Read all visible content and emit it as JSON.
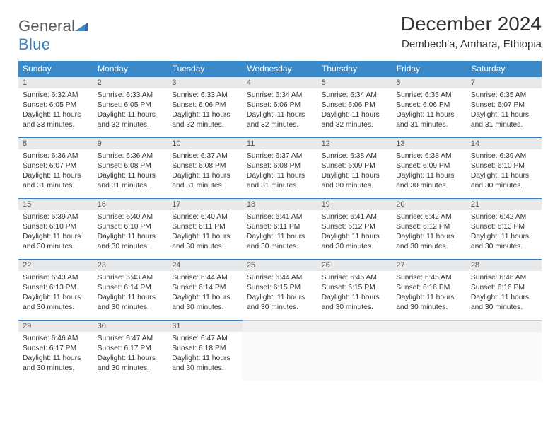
{
  "logo": {
    "word1": "General",
    "word2": "Blue"
  },
  "title": "December 2024",
  "location": "Dembech'a, Amhara, Ethiopia",
  "colors": {
    "header_bg": "#3a8ac9",
    "daynum_bg": "#e8e9ea",
    "daynum_border": "#3a7fc4",
    "logo_blue": "#3a7fc4",
    "text": "#333333"
  },
  "weekdays": [
    "Sunday",
    "Monday",
    "Tuesday",
    "Wednesday",
    "Thursday",
    "Friday",
    "Saturday"
  ],
  "weeks": [
    [
      {
        "n": "1",
        "sr": "6:32 AM",
        "ss": "6:05 PM",
        "dl": "11 hours and 33 minutes."
      },
      {
        "n": "2",
        "sr": "6:33 AM",
        "ss": "6:05 PM",
        "dl": "11 hours and 32 minutes."
      },
      {
        "n": "3",
        "sr": "6:33 AM",
        "ss": "6:06 PM",
        "dl": "11 hours and 32 minutes."
      },
      {
        "n": "4",
        "sr": "6:34 AM",
        "ss": "6:06 PM",
        "dl": "11 hours and 32 minutes."
      },
      {
        "n": "5",
        "sr": "6:34 AM",
        "ss": "6:06 PM",
        "dl": "11 hours and 32 minutes."
      },
      {
        "n": "6",
        "sr": "6:35 AM",
        "ss": "6:06 PM",
        "dl": "11 hours and 31 minutes."
      },
      {
        "n": "7",
        "sr": "6:35 AM",
        "ss": "6:07 PM",
        "dl": "11 hours and 31 minutes."
      }
    ],
    [
      {
        "n": "8",
        "sr": "6:36 AM",
        "ss": "6:07 PM",
        "dl": "11 hours and 31 minutes."
      },
      {
        "n": "9",
        "sr": "6:36 AM",
        "ss": "6:08 PM",
        "dl": "11 hours and 31 minutes."
      },
      {
        "n": "10",
        "sr": "6:37 AM",
        "ss": "6:08 PM",
        "dl": "11 hours and 31 minutes."
      },
      {
        "n": "11",
        "sr": "6:37 AM",
        "ss": "6:08 PM",
        "dl": "11 hours and 31 minutes."
      },
      {
        "n": "12",
        "sr": "6:38 AM",
        "ss": "6:09 PM",
        "dl": "11 hours and 30 minutes."
      },
      {
        "n": "13",
        "sr": "6:38 AM",
        "ss": "6:09 PM",
        "dl": "11 hours and 30 minutes."
      },
      {
        "n": "14",
        "sr": "6:39 AM",
        "ss": "6:10 PM",
        "dl": "11 hours and 30 minutes."
      }
    ],
    [
      {
        "n": "15",
        "sr": "6:39 AM",
        "ss": "6:10 PM",
        "dl": "11 hours and 30 minutes."
      },
      {
        "n": "16",
        "sr": "6:40 AM",
        "ss": "6:10 PM",
        "dl": "11 hours and 30 minutes."
      },
      {
        "n": "17",
        "sr": "6:40 AM",
        "ss": "6:11 PM",
        "dl": "11 hours and 30 minutes."
      },
      {
        "n": "18",
        "sr": "6:41 AM",
        "ss": "6:11 PM",
        "dl": "11 hours and 30 minutes."
      },
      {
        "n": "19",
        "sr": "6:41 AM",
        "ss": "6:12 PM",
        "dl": "11 hours and 30 minutes."
      },
      {
        "n": "20",
        "sr": "6:42 AM",
        "ss": "6:12 PM",
        "dl": "11 hours and 30 minutes."
      },
      {
        "n": "21",
        "sr": "6:42 AM",
        "ss": "6:13 PM",
        "dl": "11 hours and 30 minutes."
      }
    ],
    [
      {
        "n": "22",
        "sr": "6:43 AM",
        "ss": "6:13 PM",
        "dl": "11 hours and 30 minutes."
      },
      {
        "n": "23",
        "sr": "6:43 AM",
        "ss": "6:14 PM",
        "dl": "11 hours and 30 minutes."
      },
      {
        "n": "24",
        "sr": "6:44 AM",
        "ss": "6:14 PM",
        "dl": "11 hours and 30 minutes."
      },
      {
        "n": "25",
        "sr": "6:44 AM",
        "ss": "6:15 PM",
        "dl": "11 hours and 30 minutes."
      },
      {
        "n": "26",
        "sr": "6:45 AM",
        "ss": "6:15 PM",
        "dl": "11 hours and 30 minutes."
      },
      {
        "n": "27",
        "sr": "6:45 AM",
        "ss": "6:16 PM",
        "dl": "11 hours and 30 minutes."
      },
      {
        "n": "28",
        "sr": "6:46 AM",
        "ss": "6:16 PM",
        "dl": "11 hours and 30 minutes."
      }
    ],
    [
      {
        "n": "29",
        "sr": "6:46 AM",
        "ss": "6:17 PM",
        "dl": "11 hours and 30 minutes."
      },
      {
        "n": "30",
        "sr": "6:47 AM",
        "ss": "6:17 PM",
        "dl": "11 hours and 30 minutes."
      },
      {
        "n": "31",
        "sr": "6:47 AM",
        "ss": "6:18 PM",
        "dl": "11 hours and 30 minutes."
      },
      null,
      null,
      null,
      null
    ]
  ],
  "labels": {
    "sunrise": "Sunrise:",
    "sunset": "Sunset:",
    "daylight": "Daylight:"
  }
}
